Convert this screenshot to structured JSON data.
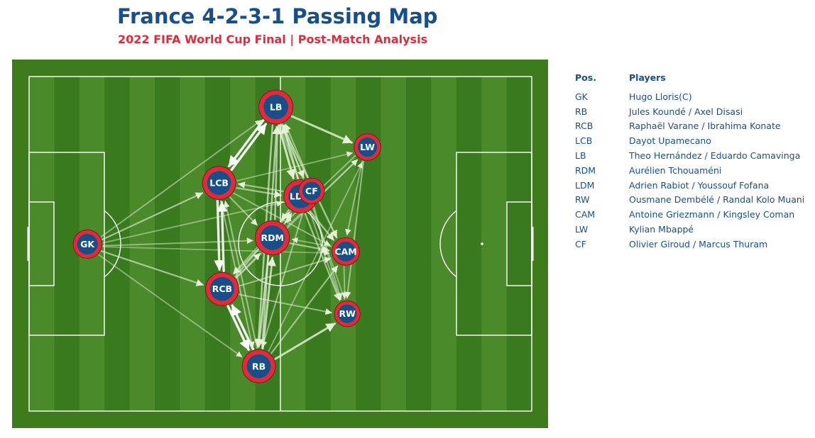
{
  "chart_data": {
    "type": "network",
    "title": "France 4-2-3-1 Passing Map",
    "subtitle": "2022 FIFA World Cup Final | Post-Match Analysis",
    "colors": {
      "pitch_stripe_dark": "#3a7a1f",
      "pitch_stripe_light": "#4a8a2a",
      "pitch_border": "#3d7b1c",
      "pitch_lines": "#ffffff",
      "node_ring": "#e02b3a",
      "node_fill": "#174f8a",
      "pass": "#e6f2d8",
      "title": "#174f8a",
      "subtitle": "#e02b3a"
    },
    "nodes": [
      {
        "id": "GK",
        "label": "GK",
        "x": 11.6,
        "y": 50.1,
        "size": 0.7
      },
      {
        "id": "LB",
        "label": "LB",
        "x": 49.1,
        "y": 9.1,
        "size": 1.0
      },
      {
        "id": "LCB",
        "label": "LCB",
        "x": 37.8,
        "y": 31.8,
        "size": 0.95
      },
      {
        "id": "RCB",
        "label": "RCB",
        "x": 38.4,
        "y": 63.5,
        "size": 0.95
      },
      {
        "id": "RB",
        "label": "RB",
        "x": 45.7,
        "y": 86.6,
        "size": 0.95
      },
      {
        "id": "RDM",
        "label": "RDM",
        "x": 48.4,
        "y": 48.2,
        "size": 1.0
      },
      {
        "id": "LDM",
        "label": "LDM",
        "x": 54.0,
        "y": 35.8,
        "size": 0.95
      },
      {
        "id": "CF",
        "label": "CF",
        "x": 56.2,
        "y": 34.2,
        "size": 0.55
      },
      {
        "id": "LW",
        "label": "LW",
        "x": 67.3,
        "y": 21.1,
        "size": 0.6
      },
      {
        "id": "CAM",
        "label": "CAM",
        "x": 63.0,
        "y": 52.3,
        "size": 0.65
      },
      {
        "id": "RW",
        "label": "RW",
        "x": 63.3,
        "y": 70.9,
        "size": 0.55
      }
    ],
    "edges": [
      {
        "from": "LCB",
        "to": "LB",
        "weight": 1.0
      },
      {
        "from": "LB",
        "to": "LCB",
        "weight": 1.0
      },
      {
        "from": "RCB",
        "to": "RB",
        "weight": 1.0
      },
      {
        "from": "RB",
        "to": "RCB",
        "weight": 1.0
      },
      {
        "from": "LCB",
        "to": "RCB",
        "weight": 0.95
      },
      {
        "from": "RCB",
        "to": "LCB",
        "weight": 0.95
      },
      {
        "from": "LB",
        "to": "LW",
        "weight": 0.8
      },
      {
        "from": "LB",
        "to": "LDM",
        "weight": 0.85
      },
      {
        "from": "LDM",
        "to": "LB",
        "weight": 0.7
      },
      {
        "from": "RB",
        "to": "RW",
        "weight": 0.8
      },
      {
        "from": "RB",
        "to": "RDM",
        "weight": 0.75
      },
      {
        "from": "RDM",
        "to": "RB",
        "weight": 0.7
      },
      {
        "from": "LB",
        "to": "RB",
        "weight": 0.6
      },
      {
        "from": "RB",
        "to": "LB",
        "weight": 0.6
      },
      {
        "from": "RDM",
        "to": "LB",
        "weight": 0.6
      },
      {
        "from": "LB",
        "to": "CF",
        "weight": 0.55
      },
      {
        "from": "LB",
        "to": "CAM",
        "weight": 0.55
      },
      {
        "from": "LDM",
        "to": "RW",
        "weight": 0.5
      },
      {
        "from": "LDM",
        "to": "CAM",
        "weight": 0.55
      },
      {
        "from": "RDM",
        "to": "CAM",
        "weight": 0.5
      },
      {
        "from": "RCB",
        "to": "LDM",
        "weight": 0.5
      },
      {
        "from": "LCB",
        "to": "LDM",
        "weight": 0.5
      },
      {
        "from": "LDM",
        "to": "LCB",
        "weight": 0.45
      },
      {
        "from": "GK",
        "to": "LCB",
        "weight": 0.5
      },
      {
        "from": "GK",
        "to": "RCB",
        "weight": 0.5
      },
      {
        "from": "GK",
        "to": "LB",
        "weight": 0.35
      },
      {
        "from": "GK",
        "to": "RB",
        "weight": 0.3
      },
      {
        "from": "GK",
        "to": "RDM",
        "weight": 0.35
      },
      {
        "from": "GK",
        "to": "LDM",
        "weight": 0.3
      },
      {
        "from": "GK",
        "to": "CAM",
        "weight": 0.25
      },
      {
        "from": "RCB",
        "to": "CAM",
        "weight": 0.4
      },
      {
        "from": "RCB",
        "to": "RW",
        "weight": 0.4
      },
      {
        "from": "RB",
        "to": "CAM",
        "weight": 0.45
      },
      {
        "from": "RB",
        "to": "LCB",
        "weight": 0.4
      },
      {
        "from": "LCB",
        "to": "RB",
        "weight": 0.4
      },
      {
        "from": "LW",
        "to": "RW",
        "weight": 0.4
      },
      {
        "from": "LW",
        "to": "RDM",
        "weight": 0.35
      },
      {
        "from": "LW",
        "to": "CAM",
        "weight": 0.35
      },
      {
        "from": "CF",
        "to": "LB",
        "weight": 0.4
      },
      {
        "from": "CF",
        "to": "RCB",
        "weight": 0.35
      },
      {
        "from": "CF",
        "to": "RB",
        "weight": 0.4
      },
      {
        "from": "RDM",
        "to": "LW",
        "weight": 0.35
      },
      {
        "from": "RDM",
        "to": "LDM",
        "weight": 0.5
      },
      {
        "from": "LDM",
        "to": "RDM",
        "weight": 0.5
      },
      {
        "from": "RCB",
        "to": "LW",
        "weight": 0.3
      },
      {
        "from": "LCB",
        "to": "CAM",
        "weight": 0.35
      },
      {
        "from": "LCB",
        "to": "LW",
        "weight": 0.3
      },
      {
        "from": "CAM",
        "to": "RW",
        "weight": 0.35
      },
      {
        "from": "RW",
        "to": "LB",
        "weight": 0.3
      },
      {
        "from": "RDM",
        "to": "RCB",
        "weight": 0.4
      },
      {
        "from": "RCB",
        "to": "RDM",
        "weight": 0.45
      },
      {
        "from": "LCB",
        "to": "RDM",
        "weight": 0.4
      },
      {
        "from": "CAM",
        "to": "RDM",
        "weight": 0.3
      },
      {
        "from": "CF",
        "to": "RW",
        "weight": 0.35
      },
      {
        "from": "RB",
        "to": "LW",
        "weight": 0.3
      },
      {
        "from": "LB",
        "to": "RW",
        "weight": 0.35
      }
    ]
  },
  "legend": {
    "pos_header": "Pos.",
    "players_header": "Players",
    "rows": [
      {
        "pos": "GK",
        "players": "Hugo Lloris(C)"
      },
      {
        "pos": "RB",
        "players": "Jules Koundé / Axel Disasi"
      },
      {
        "pos": "RCB",
        "players": "Raphaël Varane / Ibrahima Konate"
      },
      {
        "pos": "LCB",
        "players": "Dayot Upamecano"
      },
      {
        "pos": "LB",
        "players": "Theo Hernández / Eduardo Camavinga"
      },
      {
        "pos": "RDM",
        "players": "Aurélien Tchouaméni"
      },
      {
        "pos": "LDM",
        "players": "Adrien Rabiot / Youssouf Fofana"
      },
      {
        "pos": "RW",
        "players": "Ousmane Dembélé / Randal Kolo Muani"
      },
      {
        "pos": "CAM",
        "players": "Antoine Griezmann / Kingsley Coman"
      },
      {
        "pos": "LW",
        "players": "Kylian Mbappé"
      },
      {
        "pos": "CF",
        "players": "Olivier Giroud / Marcus Thuram"
      }
    ]
  }
}
